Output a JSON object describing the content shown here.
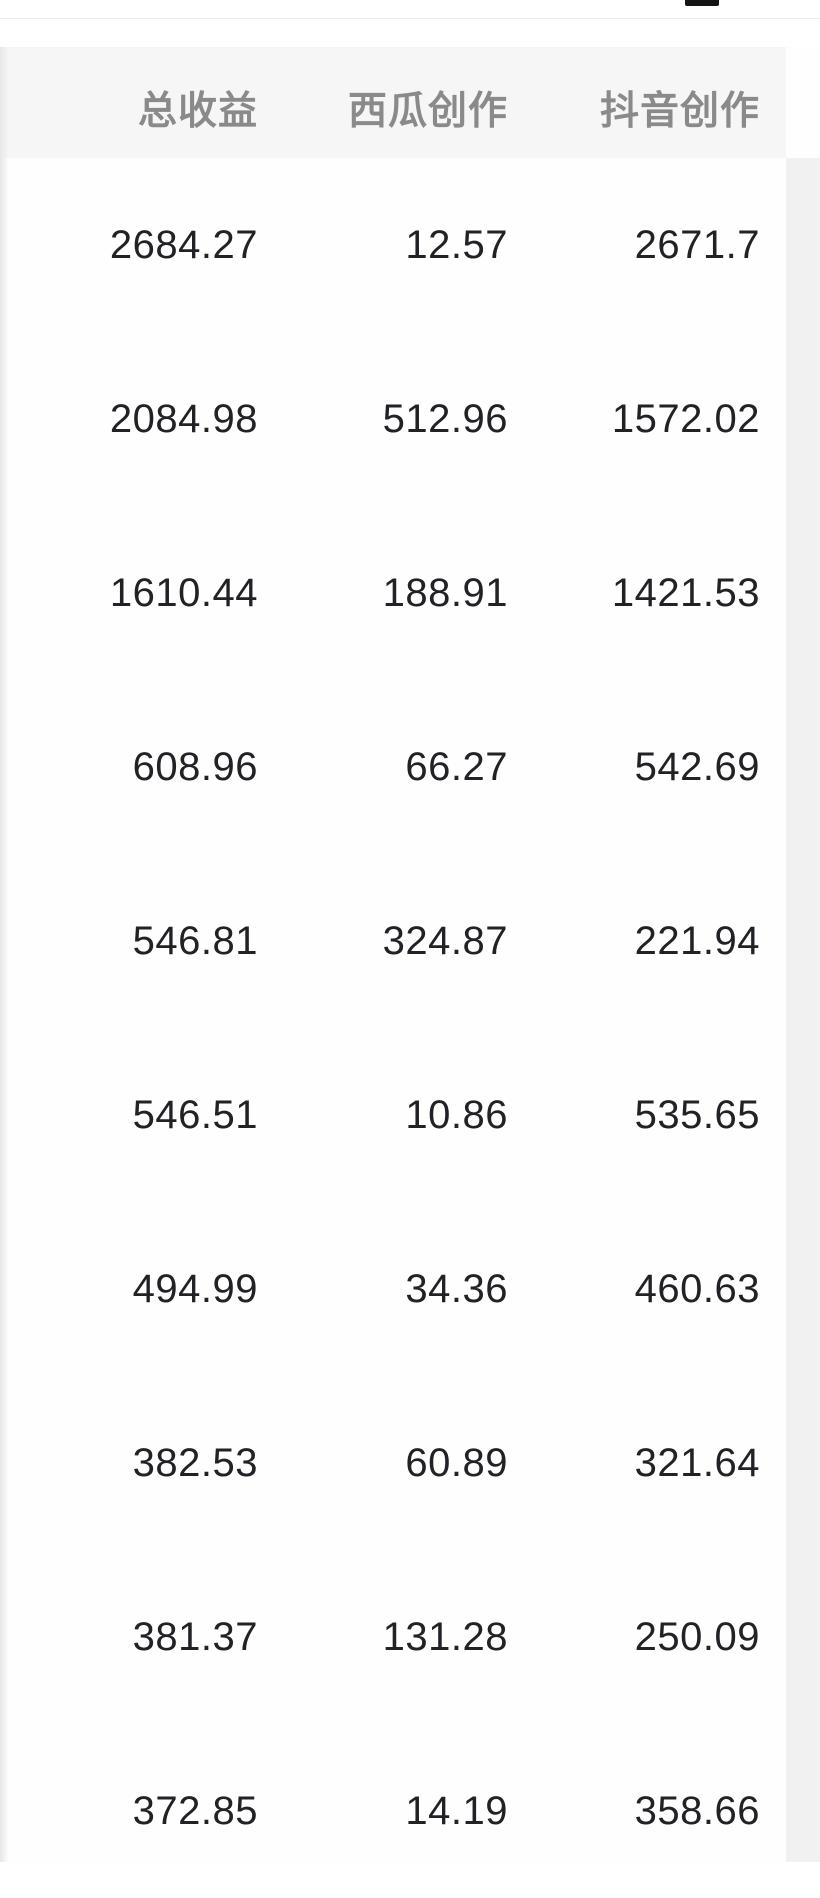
{
  "colors": {
    "header_bg": "#f6f6f6",
    "header_text": "#8a8a8a",
    "value_text": "#212126",
    "right_gutter": "#f1f1f1",
    "top_bar_fragment": "#141414"
  },
  "table": {
    "columns": [
      {
        "label": "总收益"
      },
      {
        "label": "西瓜创作"
      },
      {
        "label": "抖音创作"
      }
    ],
    "rows": [
      [
        "2684.27",
        "12.57",
        "2671.7"
      ],
      [
        "2084.98",
        "512.96",
        "1572.02"
      ],
      [
        "1610.44",
        "188.91",
        "1421.53"
      ],
      [
        "608.96",
        "66.27",
        "542.69"
      ],
      [
        "546.81",
        "324.87",
        "221.94"
      ],
      [
        "546.51",
        "10.86",
        "535.65"
      ],
      [
        "494.99",
        "34.36",
        "460.63"
      ],
      [
        "382.53",
        "60.89",
        "321.64"
      ],
      [
        "381.37",
        "131.28",
        "250.09"
      ],
      [
        "372.85",
        "14.19",
        "358.66"
      ]
    ]
  }
}
